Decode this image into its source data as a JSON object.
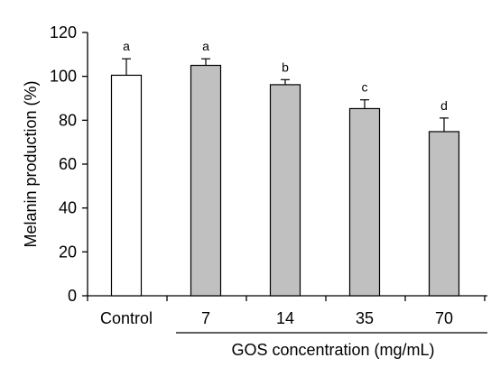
{
  "chart_data": {
    "type": "bar",
    "categories": [
      "Control",
      "7",
      "14",
      "35",
      "70"
    ],
    "values": [
      100.5,
      105,
      96.2,
      85.3,
      74.8
    ],
    "errors": [
      7.5,
      3,
      2.3,
      4,
      6.2
    ],
    "significance": [
      "a",
      "a",
      "b",
      "c",
      "d"
    ],
    "bar_colors": [
      "#ffffff",
      "#c0c0c0",
      "#c0c0c0",
      "#c0c0c0",
      "#c0c0c0"
    ],
    "ylabel": "Melanin production (%)",
    "group_label": "GOS concentration (mg/mL)",
    "ylim": [
      0,
      120
    ],
    "yticks": [
      0,
      20,
      40,
      60,
      80,
      100,
      120
    ],
    "grid": false,
    "legend": "none"
  }
}
